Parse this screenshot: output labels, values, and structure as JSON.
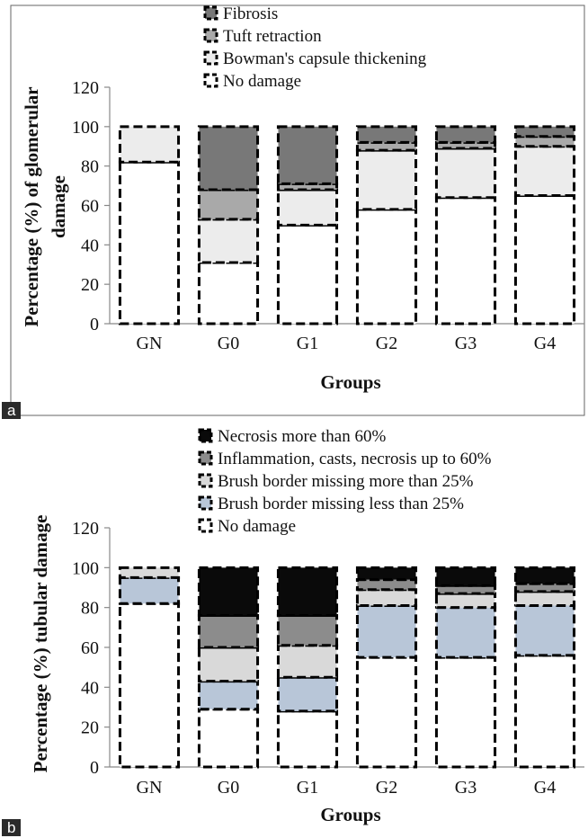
{
  "chart_data": [
    {
      "panel_label": "a",
      "type": "bar",
      "stacked": true,
      "categories": [
        "GN",
        "G0",
        "G1",
        "G2",
        "G3",
        "G4"
      ],
      "xlabel": "Groups",
      "ylabel": "Percentage (%) of glomerular damage",
      "ylabel_lines": [
        "Percentage (%) of glomerular",
        "damage"
      ],
      "ylim": [
        0,
        120
      ],
      "yticks": [
        "0",
        "20",
        "40",
        "60",
        "80",
        "100",
        "120"
      ],
      "legend_position": "top",
      "series": [
        {
          "name": "No damage",
          "color": "#ffffff",
          "values": [
            82,
            31,
            50,
            58,
            64,
            65
          ]
        },
        {
          "name": "Bowman's capsule thickening",
          "color": "#ececec",
          "values": [
            18,
            22,
            18,
            30,
            25,
            25
          ]
        },
        {
          "name": "Tuft retraction",
          "color": "#a9a9a9",
          "values": [
            0,
            15,
            3,
            4,
            3,
            5
          ]
        },
        {
          "name": "Fibrosis",
          "color": "#787878",
          "values": [
            0,
            32,
            29,
            8,
            8,
            5
          ]
        }
      ],
      "legend_order": [
        "Fibrosis",
        "Tuft retraction",
        "Bowman's capsule thickening",
        "No damage"
      ]
    },
    {
      "panel_label": "b",
      "type": "bar",
      "stacked": true,
      "categories": [
        "GN",
        "G0",
        "G1",
        "G2",
        "G3",
        "G4"
      ],
      "xlabel": "Groups",
      "ylabel": "Percentage (%) tubular damage",
      "ylabel_lines": [
        "Percentage (%) tubular damage"
      ],
      "ylim": [
        0,
        120
      ],
      "yticks": [
        "0",
        "20",
        "40",
        "60",
        "80",
        "100",
        "120"
      ],
      "legend_position": "top",
      "series": [
        {
          "name": "No damage",
          "color": "#ffffff",
          "values": [
            82,
            29,
            28,
            55,
            55,
            56
          ]
        },
        {
          "name": "Brush border missing less than 25%",
          "color": "#b8c6d8",
          "values": [
            13,
            14,
            17,
            26,
            25,
            25
          ]
        },
        {
          "name": "Brush border missing more than 25%",
          "color": "#d9d9d9",
          "values": [
            5,
            17,
            16,
            8,
            7,
            7
          ]
        },
        {
          "name": "Inflammation, casts, necrosis up to 60%",
          "color": "#8c8c8c",
          "values": [
            0,
            16,
            15,
            5,
            4,
            4
          ]
        },
        {
          "name": "Necrosis more than 60%",
          "color": "#0a0a0a",
          "values": [
            0,
            24,
            24,
            6,
            9,
            8
          ]
        }
      ],
      "legend_order": [
        "Necrosis more than 60%",
        "Inflammation, casts, necrosis up to 60%",
        "Brush border missing more than 25%",
        "Brush border missing less than 25%",
        "No damage"
      ]
    }
  ]
}
